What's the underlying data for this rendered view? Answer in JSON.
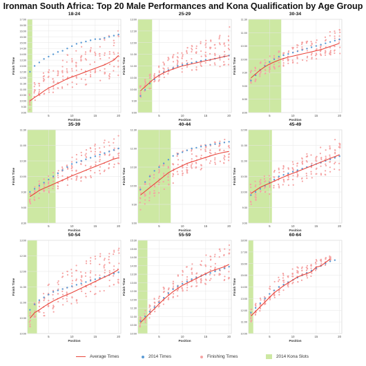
{
  "title": "Ironman South Africa: Top 20 Male Performances and Kona Qualification by Age Group",
  "colors": {
    "avg": "#e8443a",
    "y2014": "#5b9bd5",
    "finishing": "#f5a3a3",
    "kona": "#cde8a3",
    "grid": "#e6e6e6",
    "frame": "#cccccc",
    "text": "#444444"
  },
  "legend": [
    {
      "label": "Average Times",
      "type": "line",
      "color": "#e8443a"
    },
    {
      "label": "2014 Times",
      "type": "dot",
      "color": "#5b9bd5"
    },
    {
      "label": "Finishing Times",
      "type": "dot",
      "color": "#f5a3a3"
    },
    {
      "label": "2014 Kona Slots",
      "type": "box",
      "color": "#cde8a3"
    }
  ],
  "chart_data": [
    {
      "type": "scatter",
      "title": "18-24",
      "xlabel": "Position",
      "ylabel": "Finish Time",
      "x_ticks": [
        5,
        10,
        15,
        20
      ],
      "y_ticks": [
        "9:00",
        "9:30",
        "10:00",
        "10:30",
        "11:00",
        "11:30",
        "12:00",
        "12:30",
        "13:00",
        "13:30",
        "14:00",
        "14:30",
        "15:00",
        "15:30",
        "16:00",
        "16:30",
        "17:00"
      ],
      "ylim_h": [
        9,
        17
      ],
      "kona_slots": 1,
      "average": [
        10,
        10.3,
        10.55,
        10.85,
        11.1,
        11.3,
        11.5,
        11.7,
        11.9,
        12.05,
        12.2,
        12.35,
        12.5,
        12.65,
        12.8,
        12.95,
        13.1,
        13.3,
        13.5,
        13.9
      ],
      "spread_low": [
        -0.8,
        -0.6,
        -0.5,
        -0.4,
        -0.5,
        -0.6,
        -0.6,
        -0.7,
        -0.8,
        -0.9,
        -1,
        -1.1,
        -1.2,
        -1.3,
        -1.4,
        -1.5,
        -1.5,
        -1.6,
        -1.7,
        -1.8
      ],
      "spread_high": [
        1.1,
        1.3,
        1.5,
        1.6,
        1.7,
        1.8,
        1.9,
        2,
        2.1,
        2.2,
        2.3,
        2.3,
        2.4,
        2.4,
        2.5,
        2.5,
        2.5,
        2.5,
        2.5,
        2.4
      ],
      "y2014": [
        12.5,
        13.0,
        13.3,
        13.6,
        13.8,
        14.0,
        14.2,
        14.3,
        14.5,
        14.7,
        14.9,
        15.0,
        15.1,
        15.2,
        15.3,
        15.3,
        15.4,
        15.5,
        15.6,
        15.7
      ]
    },
    {
      "type": "scatter",
      "title": "25-29",
      "xlabel": "Position",
      "ylabel": "Finish Time",
      "x_ticks": [
        5,
        10,
        15,
        20
      ],
      "y_ticks": [
        "9:00",
        "9:30",
        "10:00",
        "10:30",
        "11:00",
        "11:30",
        "12:00",
        "12:30",
        "13:00"
      ],
      "ylim_h": [
        8.5,
        13
      ],
      "kona_slots": 3,
      "average": [
        9.55,
        9.75,
        9.95,
        10.15,
        10.3,
        10.42,
        10.52,
        10.6,
        10.68,
        10.75,
        10.8,
        10.85,
        10.9,
        10.95,
        11.0,
        11.05,
        11.1,
        11.15,
        11.2,
        11.25
      ],
      "spread_low": [
        -0.35,
        -0.3,
        -0.3,
        -0.3,
        -0.3,
        -0.3,
        -0.3,
        -0.3,
        -0.3,
        -0.3,
        -0.35,
        -0.35,
        -0.35,
        -0.4,
        -0.4,
        -0.4,
        -0.45,
        -0.45,
        -0.5,
        -0.5
      ],
      "spread_high": [
        0.3,
        0.35,
        0.4,
        0.5,
        0.55,
        0.6,
        0.65,
        0.7,
        0.75,
        0.8,
        0.85,
        0.9,
        0.95,
        1.0,
        1.05,
        1.1,
        1.15,
        1.2,
        1.3,
        1.4
      ],
      "y2014": [
        9.3,
        9.6,
        9.9,
        10.1,
        10.3,
        10.45,
        10.55,
        10.65,
        10.75,
        10.8,
        10.85,
        10.9,
        10.95,
        11.0,
        11.05,
        11.05,
        11.1,
        11.15,
        11.2,
        11.25
      ]
    },
    {
      "type": "scatter",
      "title": "30-34",
      "xlabel": "Position",
      "ylabel": "Finish Time",
      "x_ticks": [
        5,
        10,
        15,
        20
      ],
      "y_ticks": [
        "8:00",
        "8:30",
        "9:00",
        "9:30",
        "10:00",
        "10:30",
        "11:00",
        "11:30"
      ],
      "ylim_h": [
        8,
        11.5
      ],
      "kona_slots": 7,
      "average": [
        9.3,
        9.45,
        9.6,
        9.72,
        9.82,
        9.9,
        9.97,
        10.03,
        10.08,
        10.12,
        10.16,
        10.2,
        10.24,
        10.28,
        10.32,
        10.36,
        10.42,
        10.48,
        10.54,
        10.6
      ],
      "spread_low": [
        -0.3,
        -0.3,
        -0.3,
        -0.3,
        -0.3,
        -0.3,
        -0.3,
        -0.3,
        -0.35,
        -0.35,
        -0.35,
        -0.35,
        -0.35,
        -0.35,
        -0.35,
        -0.35,
        -0.4,
        -0.4,
        -0.4,
        -0.4
      ],
      "spread_high": [
        0.3,
        0.3,
        0.3,
        0.3,
        0.3,
        0.35,
        0.35,
        0.35,
        0.4,
        0.4,
        0.4,
        0.45,
        0.45,
        0.45,
        0.5,
        0.5,
        0.5,
        0.55,
        0.55,
        0.6
      ],
      "y2014": [
        9.2,
        9.4,
        9.6,
        9.75,
        9.9,
        10.0,
        10.1,
        10.15,
        10.2,
        10.25,
        10.3,
        10.35,
        10.4,
        10.45,
        10.5,
        10.55,
        10.6,
        10.65,
        10.7,
        10.75
      ]
    },
    {
      "type": "scatter",
      "title": "35-39",
      "xlabel": "Position",
      "ylabel": "Finish Time",
      "x_ticks": [
        5,
        10,
        15,
        20
      ],
      "y_ticks": [
        "8:30",
        "9:00",
        "9:30",
        "10:00",
        "10:30",
        "11:00",
        "11:30"
      ],
      "ylim_h": [
        8.5,
        11.5
      ],
      "kona_slots": 6,
      "average": [
        9.35,
        9.45,
        9.55,
        9.62,
        9.68,
        9.75,
        9.82,
        9.88,
        9.95,
        10.02,
        10.08,
        10.14,
        10.2,
        10.26,
        10.32,
        10.38,
        10.44,
        10.5,
        10.56,
        10.6
      ],
      "spread_low": [
        -0.25,
        -0.25,
        -0.25,
        -0.25,
        -0.25,
        -0.25,
        -0.25,
        -0.25,
        -0.25,
        -0.25,
        -0.3,
        -0.3,
        -0.3,
        -0.3,
        -0.3,
        -0.3,
        -0.3,
        -0.3,
        -0.3,
        -0.3
      ],
      "spread_high": [
        0.3,
        0.3,
        0.3,
        0.3,
        0.35,
        0.4,
        0.45,
        0.5,
        0.55,
        0.6,
        0.65,
        0.65,
        0.7,
        0.7,
        0.75,
        0.75,
        0.75,
        0.75,
        0.75,
        0.75
      ],
      "y2014": [
        9.5,
        9.6,
        9.7,
        9.8,
        9.9,
        10.0,
        10.1,
        10.2,
        10.3,
        10.4,
        10.45,
        10.5,
        10.55,
        10.6,
        10.65,
        10.7,
        10.75,
        10.8,
        10.85,
        10.9
      ]
    },
    {
      "type": "scatter",
      "title": "40-44",
      "xlabel": "Position",
      "ylabel": "Finish Time",
      "x_ticks": [
        5,
        10,
        15,
        20
      ],
      "y_ticks": [
        "9:00",
        "9:30",
        "10:00",
        "10:30",
        "11:00",
        "11:30"
      ],
      "ylim_h": [
        9,
        11.5
      ],
      "kona_slots": 7,
      "average": [
        9.75,
        9.85,
        9.95,
        10.05,
        10.15,
        10.25,
        10.35,
        10.42,
        10.48,
        10.54,
        10.6,
        10.64,
        10.68,
        10.72,
        10.76,
        10.8,
        10.84,
        10.87,
        10.9,
        10.92
      ],
      "spread_low": [
        -0.4,
        -0.35,
        -0.35,
        -0.35,
        -0.35,
        -0.35,
        -0.35,
        -0.35,
        -0.35,
        -0.35,
        -0.35,
        -0.3,
        -0.3,
        -0.3,
        -0.3,
        -0.3,
        -0.3,
        -0.3,
        -0.3,
        -0.3
      ],
      "spread_high": [
        0.25,
        0.3,
        0.35,
        0.4,
        0.4,
        0.4,
        0.4,
        0.4,
        0.4,
        0.4,
        0.4,
        0.4,
        0.4,
        0.4,
        0.35,
        0.35,
        0.35,
        0.35,
        0.35,
        0.35
      ],
      "y2014": [
        9.9,
        10.1,
        10.25,
        10.4,
        10.5,
        10.6,
        10.7,
        10.8,
        10.85,
        10.9,
        10.95,
        11.0,
        11.02,
        11.05,
        11.08,
        11.1,
        11.12,
        11.14,
        11.16,
        11.18
      ]
    },
    {
      "type": "scatter",
      "title": "45-49",
      "xlabel": "Position",
      "ylabel": "Finish Time",
      "x_ticks": [
        5,
        10,
        15,
        20
      ],
      "y_ticks": [
        "9:00",
        "9:30",
        "10:00",
        "10:30",
        "11:00",
        "11:30",
        "12:00"
      ],
      "ylim_h": [
        9,
        12
      ],
      "kona_slots": 5,
      "average": [
        9.95,
        10.05,
        10.15,
        10.22,
        10.28,
        10.35,
        10.42,
        10.48,
        10.55,
        10.6,
        10.66,
        10.72,
        10.78,
        10.84,
        10.9,
        10.96,
        11.02,
        11.08,
        11.14,
        11.2
      ],
      "spread_low": [
        -0.35,
        -0.35,
        -0.35,
        -0.35,
        -0.35,
        -0.35,
        -0.35,
        -0.35,
        -0.4,
        -0.4,
        -0.4,
        -0.4,
        -0.45,
        -0.45,
        -0.45,
        -0.5,
        -0.5,
        -0.5,
        -0.55,
        -0.55
      ],
      "spread_high": [
        0.3,
        0.3,
        0.3,
        0.35,
        0.35,
        0.35,
        0.35,
        0.4,
        0.4,
        0.4,
        0.45,
        0.45,
        0.45,
        0.5,
        0.5,
        0.5,
        0.5,
        0.55,
        0.55,
        0.55
      ],
      "y2014": [
        9.9,
        10.0,
        10.1,
        10.2,
        10.3,
        10.4,
        10.5,
        10.55,
        10.6,
        10.65,
        10.7,
        10.75,
        10.8,
        10.85,
        10.9,
        10.95,
        11.0,
        11.05,
        11.1,
        11.15
      ]
    },
    {
      "type": "scatter",
      "title": "50-54",
      "xlabel": "Position",
      "ylabel": "Finish Time",
      "x_ticks": [
        5,
        10,
        15,
        20
      ],
      "y_ticks": [
        "10:00",
        "10:30",
        "11:00",
        "11:30",
        "12:00",
        "12:30",
        "13:00"
      ],
      "ylim_h": [
        9.75,
        13.1
      ],
      "kona_slots": 2,
      "average": [
        10.3,
        10.5,
        10.6,
        10.72,
        10.82,
        10.92,
        11.0,
        11.08,
        11.15,
        11.22,
        11.3,
        11.38,
        11.46,
        11.54,
        11.62,
        11.7,
        11.78,
        11.86,
        11.95,
        12.05
      ],
      "spread_low": [
        -0.35,
        -0.35,
        -0.35,
        -0.35,
        -0.35,
        -0.4,
        -0.4,
        -0.4,
        -0.4,
        -0.45,
        -0.45,
        -0.45,
        -0.5,
        -0.5,
        -0.5,
        -0.5,
        -0.5,
        -0.5,
        -0.5,
        -0.5
      ],
      "spread_high": [
        0.3,
        0.4,
        0.5,
        0.6,
        0.7,
        0.75,
        0.8,
        0.85,
        0.9,
        0.95,
        1.0,
        1.0,
        1.0,
        1.0,
        0.95,
        0.95,
        0.9,
        0.9,
        0.9,
        0.85
      ],
      "y2014": [
        10.6,
        10.8,
        10.95,
        11.05,
        11.15,
        11.25,
        11.3,
        11.35,
        11.4,
        11.45,
        11.5,
        11.55,
        11.6,
        11.65,
        11.7,
        11.75,
        11.8,
        11.85,
        11.9,
        11.95
      ]
    },
    {
      "type": "scatter",
      "title": "55-59",
      "xlabel": "Position",
      "ylabel": "Finish Time",
      "x_ticks": [
        5,
        10,
        15,
        20
      ],
      "y_ticks": [
        "10:00",
        "10:30",
        "11:00",
        "11:30",
        "12:00",
        "12:30",
        "13:00",
        "13:30",
        "14:00",
        "14:30",
        "15:00",
        "15:30"
      ],
      "ylim_h": [
        10,
        16
      ],
      "kona_slots": 2,
      "average": [
        10.7,
        11.0,
        11.3,
        11.6,
        11.9,
        12.2,
        12.45,
        12.7,
        12.9,
        13.1,
        13.25,
        13.4,
        13.55,
        13.7,
        13.85,
        14.0,
        14.1,
        14.2,
        14.3,
        14.45
      ],
      "spread_low": [
        -0.3,
        -0.3,
        -0.3,
        -0.35,
        -0.35,
        -0.4,
        -0.4,
        -0.45,
        -0.5,
        -0.5,
        -0.55,
        -0.6,
        -0.6,
        -0.65,
        -0.7,
        -0.75,
        -0.8,
        -0.85,
        -0.9,
        -0.95
      ],
      "spread_high": [
        0.4,
        0.5,
        0.6,
        0.7,
        0.75,
        0.8,
        0.85,
        0.9,
        0.95,
        1.0,
        1.05,
        1.1,
        1.15,
        1.2,
        1.25,
        1.3,
        1.35,
        1.35,
        1.35,
        1.35
      ],
      "y2014": [
        10.8,
        11.1,
        11.4,
        11.7,
        12.0,
        12.3,
        12.6,
        12.85,
        13.05,
        13.2,
        13.35,
        13.5,
        13.6,
        13.7,
        13.8,
        13.9,
        14.0,
        14.1,
        14.2,
        14.3
      ]
    },
    {
      "type": "scatter",
      "title": "60-64",
      "xlabel": "Position",
      "ylabel": "Finish Time",
      "x_ticks": [
        5,
        10,
        15,
        20
      ],
      "y_ticks": [
        "10:00",
        "11:00",
        "12:00",
        "13:00",
        "14:00",
        "15:00",
        "16:00",
        "17:00",
        "18:00"
      ],
      "ylim_h": [
        10,
        18
      ],
      "kona_slots": 1,
      "average": [
        11.5,
        11.9,
        12.3,
        12.7,
        13.1,
        13.5,
        13.8,
        14.1,
        14.35,
        14.6,
        14.85,
        15.0,
        15.15,
        15.3,
        15.7,
        15.8,
        16.1,
        16.4
      ],
      "spread_low": [
        -0.5,
        -0.5,
        -0.5,
        -0.5,
        -0.5,
        -0.5,
        -0.5,
        -0.5,
        -0.5,
        -0.5,
        -0.5,
        -0.5,
        -0.4,
        -0.4,
        -0.4,
        -0.3,
        -0.3,
        -0.2
      ],
      "spread_high": [
        0.6,
        0.7,
        0.8,
        0.9,
        1.0,
        1.1,
        1.1,
        1.1,
        1.1,
        1.1,
        1.0,
        1.0,
        0.9,
        0.8,
        0.7,
        0.6,
        0.5,
        0.3
      ],
      "y2014": [
        11.8,
        12.2,
        12.6,
        13.0,
        13.4,
        13.7,
        14.0,
        14.2,
        14.4,
        14.6,
        14.8,
        15.0,
        15.2,
        15.4,
        15.6,
        15.8,
        16.0,
        16.2,
        16.3
      ]
    }
  ]
}
